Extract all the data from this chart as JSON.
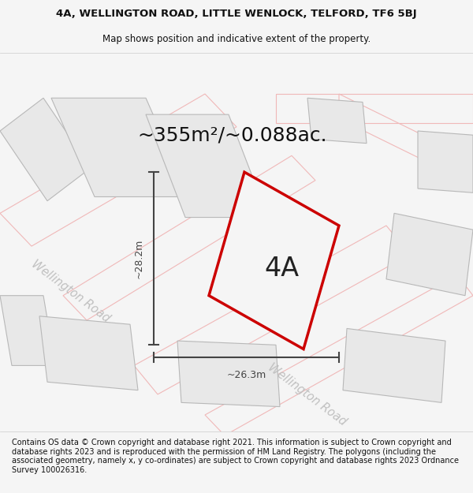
{
  "title_line1": "4A, WELLINGTON ROAD, LITTLE WENLOCK, TELFORD, TF6 5BJ",
  "title_line2": "Map shows position and indicative extent of the property.",
  "area_label": "~355m²/~0.088ac.",
  "property_label": "4A",
  "dim_height": "~28.2m",
  "dim_width": "~26.3m",
  "footer_text": "Contains OS data © Crown copyright and database right 2021. This information is subject to Crown copyright and database rights 2023 and is reproduced with the permission of HM Land Registry. The polygons (including the associated geometry, namely x, y co-ordinates) are subject to Crown copyright and database rights 2023 Ordnance Survey 100026316.",
  "bg_color": "#f5f5f5",
  "map_bg": "#ffffff",
  "road_color_light": "#f0b8b8",
  "building_fill": "#e8e8e8",
  "building_edge": "#b8b8b8",
  "road_label_color": "#c0c0c0",
  "property_polygon_color": "#cc0000",
  "dim_color": "#444444",
  "title_color": "#111111",
  "footer_color": "#111111",
  "title_fontsize": 9.5,
  "subtitle_fontsize": 8.5,
  "area_fontsize": 18,
  "property_label_fontsize": 24,
  "dim_fontsize": 9,
  "road_label_fontsize": 10.5,
  "footer_fontsize": 7.0
}
